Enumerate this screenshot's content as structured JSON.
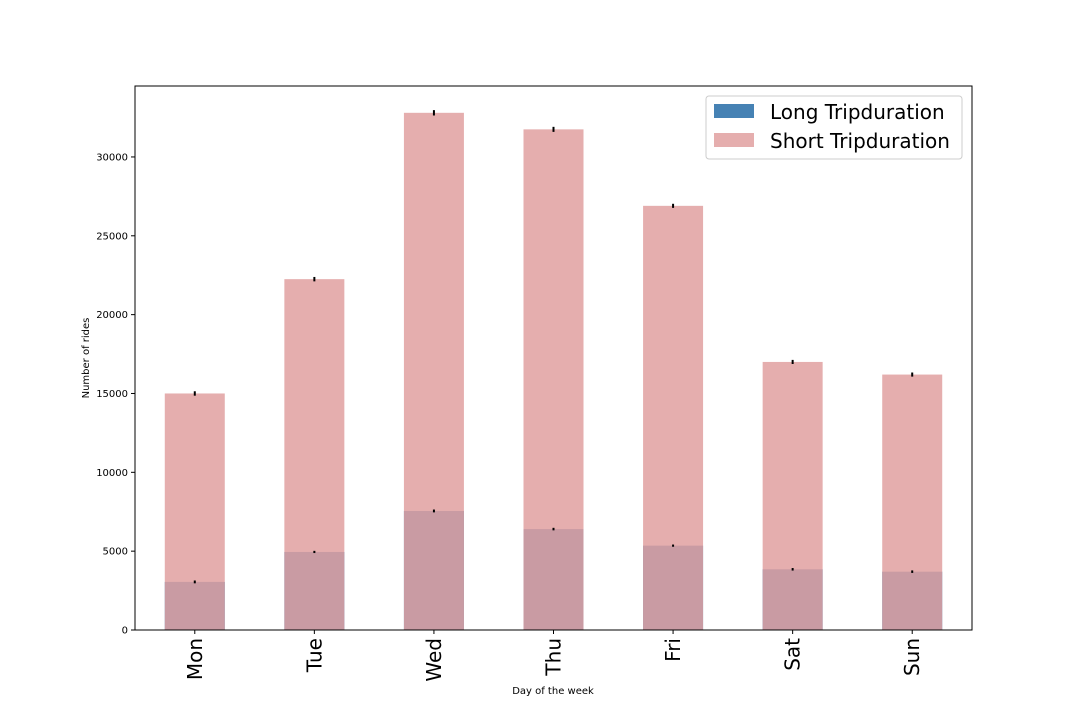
{
  "chart_data": {
    "type": "bar",
    "stacked": false,
    "overlay": true,
    "title": "",
    "xlabel": "Day of the week",
    "ylabel": "Number of rides",
    "categories": [
      "Mon",
      "Tue",
      "Wed",
      "Thu",
      "Fri",
      "Sat",
      "Sun"
    ],
    "ylim": [
      0,
      34500
    ],
    "yticks": [
      0,
      5000,
      10000,
      15000,
      20000,
      25000,
      30000
    ],
    "series": [
      {
        "name": "Long Tripduration",
        "color": "#4682b4",
        "values": [
          3050,
          4950,
          7550,
          6400,
          5350,
          3850,
          3700
        ],
        "error": [
          90,
          70,
          90,
          80,
          70,
          80,
          80
        ]
      },
      {
        "name": "Short Tripduration",
        "color": "#e0a0a0",
        "values": [
          15000,
          22250,
          32800,
          31750,
          26900,
          17000,
          16200
        ],
        "error": [
          140,
          140,
          170,
          160,
          130,
          130,
          130
        ]
      }
    ],
    "legend": "top-right",
    "grid": false
  }
}
